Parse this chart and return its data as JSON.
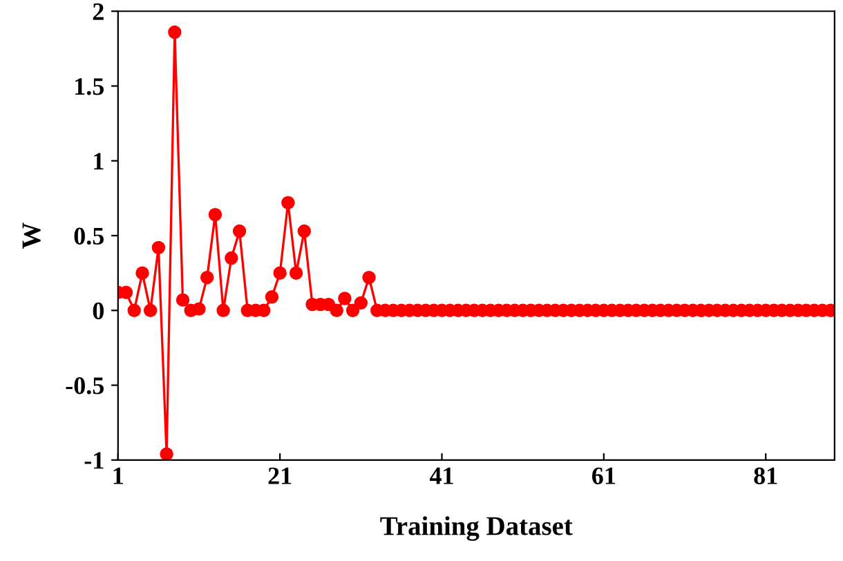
{
  "chart_data": {
    "type": "line",
    "xlabel": "Training Dataset",
    "ylabel": "W",
    "x": [
      1,
      2,
      3,
      4,
      5,
      6,
      7,
      8,
      9,
      10,
      11,
      12,
      13,
      14,
      15,
      16,
      17,
      18,
      19,
      20,
      21,
      22,
      23,
      24,
      25,
      26,
      27,
      28,
      29,
      30,
      31,
      32,
      33,
      34,
      35,
      36,
      37,
      38,
      39,
      40,
      41,
      42,
      43,
      44,
      45,
      46,
      47,
      48,
      49,
      50,
      51,
      52,
      53,
      54,
      55,
      56,
      57,
      58,
      59,
      60,
      61,
      62,
      63,
      64,
      65,
      66,
      67,
      68,
      69,
      70,
      71,
      72,
      73,
      74,
      75,
      76,
      77,
      78,
      79,
      80,
      81,
      82,
      83,
      84,
      85,
      86,
      87,
      88,
      89
    ],
    "series": [
      {
        "color": "#ff0000",
        "values": [
          0.12,
          0.12,
          0,
          0.25,
          0,
          0.42,
          -0.96,
          1.86,
          0.07,
          0,
          0.01,
          0.22,
          0.64,
          0,
          0.35,
          0.53,
          0,
          0,
          0,
          0.09,
          0.25,
          0.72,
          0.25,
          0.53,
          0.04,
          0.04,
          0.04,
          0,
          0.08,
          0,
          0.05,
          0.22,
          0,
          0,
          0,
          0,
          0,
          0,
          0,
          0,
          0,
          0,
          0,
          0,
          0,
          0,
          0,
          0,
          0,
          0,
          0,
          0,
          0,
          0,
          0,
          0,
          0,
          0,
          0,
          0,
          0,
          0,
          0,
          0,
          0,
          0,
          0,
          0,
          0,
          0,
          0,
          0,
          0,
          0,
          0,
          0,
          0,
          0,
          0,
          0,
          0,
          0,
          0,
          0,
          0,
          0,
          0,
          0,
          0
        ]
      }
    ],
    "xlim": [
      1,
      89.5
    ],
    "ylim": [
      -1,
      2
    ],
    "xticks": [
      1,
      21,
      41,
      61,
      81
    ],
    "yticks": [
      {
        "value": -1,
        "label": "-1"
      },
      {
        "value": -0.5,
        "label": "-0.5"
      },
      0,
      0.5,
      1,
      1.5,
      2
    ],
    "marker": "circle",
    "line_style": "solid",
    "grid": false,
    "legend": false
  }
}
